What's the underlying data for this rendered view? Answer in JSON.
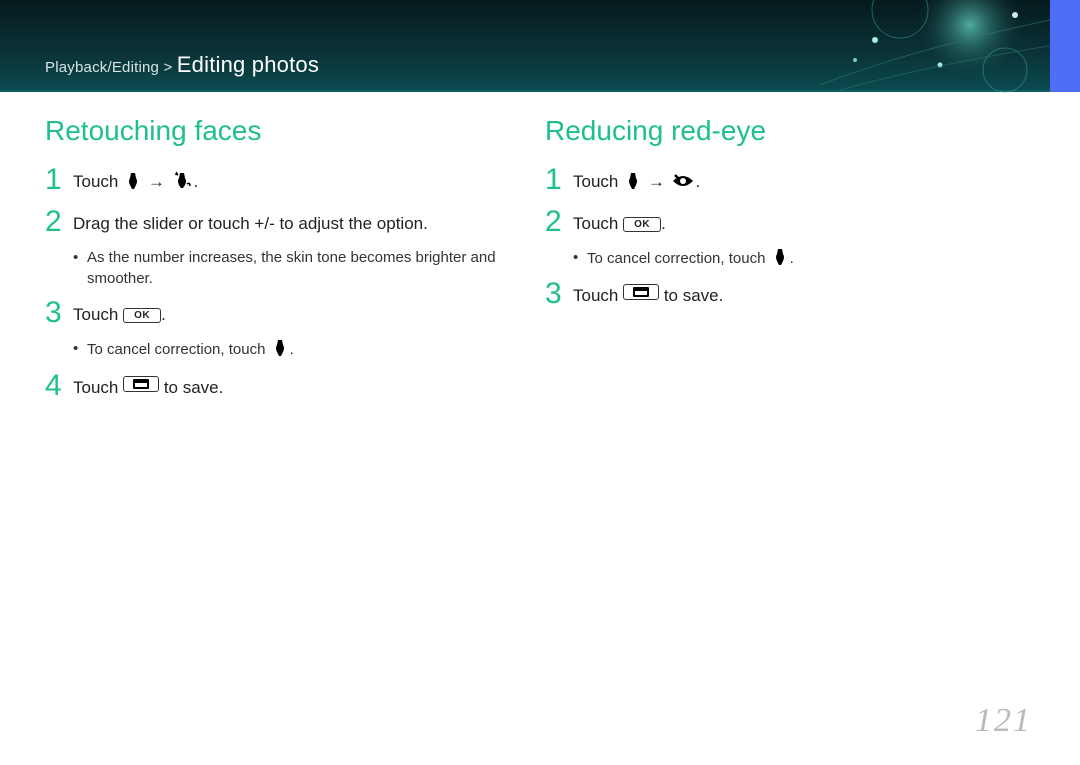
{
  "header": {
    "breadcrumb_prefix": "Playback/Editing > ",
    "title": "Editing photos",
    "band_gradient_top": "#051a1d",
    "band_gradient_mid": "#0a3338",
    "band_gradient_bottom": "#0b4a4f",
    "tab_color": "#4f6df5"
  },
  "colors": {
    "accent": "#1fbf8f",
    "text": "#222222",
    "page_num": "#b9b9b9"
  },
  "left": {
    "heading": "Retouching faces",
    "steps": [
      {
        "num": "1",
        "parts": [
          "Touch ",
          {
            "icon": "wand"
          },
          " → ",
          {
            "icon": "face-retouch"
          },
          "."
        ]
      },
      {
        "num": "2",
        "parts": [
          "Drag the slider or touch +/- to adjust the option."
        ],
        "bullets": [
          "As the number increases, the skin tone becomes brighter and smoother."
        ]
      },
      {
        "num": "3",
        "parts": [
          "Touch ",
          {
            "btn": "ok",
            "label": "OK"
          },
          "."
        ],
        "bullets": [
          {
            "parts": [
              "To cancel correction, touch ",
              {
                "icon": "wand"
              },
              "."
            ]
          }
        ]
      },
      {
        "num": "4",
        "parts": [
          "Touch ",
          {
            "btn": "save"
          },
          " to save."
        ]
      }
    ]
  },
  "right": {
    "heading": "Reducing red-eye",
    "steps": [
      {
        "num": "1",
        "parts": [
          "Touch ",
          {
            "icon": "wand"
          },
          " → ",
          {
            "icon": "red-eye"
          },
          "."
        ]
      },
      {
        "num": "2",
        "parts": [
          "Touch ",
          {
            "btn": "ok",
            "label": "OK"
          },
          "."
        ],
        "bullets": [
          {
            "parts": [
              "To cancel correction, touch ",
              {
                "icon": "wand"
              },
              "."
            ]
          }
        ]
      },
      {
        "num": "3",
        "parts": [
          "Touch ",
          {
            "btn": "save"
          },
          " to save."
        ]
      }
    ]
  },
  "page_number": "121"
}
